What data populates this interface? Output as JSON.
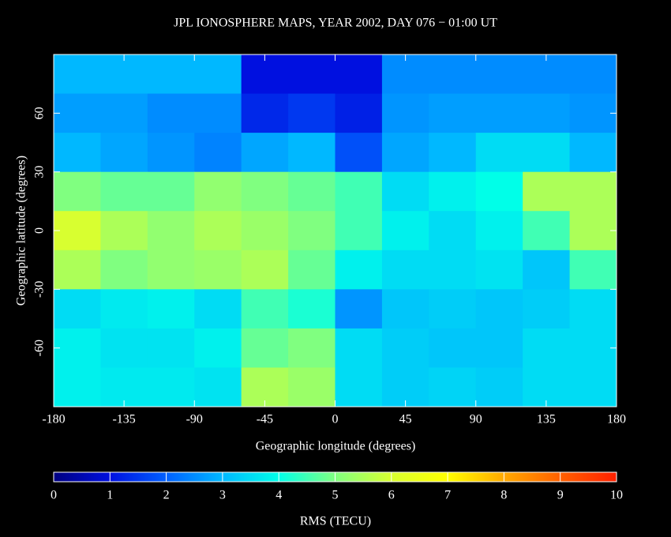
{
  "map": {
    "type": "heatmap",
    "title": "JPL IONOSPHERE MAPS, YEAR 2002, DAY 076 − 01:00 UT",
    "x_label": "Geographic longitude (degrees)",
    "y_label": "Geographic latitude (degrees)",
    "xlim": [
      -180,
      180
    ],
    "ylim": [
      -90,
      90
    ],
    "xticks": [
      -180,
      -135,
      -90,
      -45,
      0,
      45,
      90,
      135,
      180
    ],
    "yticks": [
      -60,
      -30,
      0,
      30,
      60
    ],
    "lon_edges": [
      -180,
      -150,
      -120,
      -90,
      -60,
      -30,
      0,
      30,
      60,
      90,
      120,
      150,
      180
    ],
    "lat_edges": [
      90,
      70,
      50,
      30,
      10,
      -10,
      -30,
      -50,
      -70,
      -90
    ],
    "values": [
      [
        3,
        3,
        3,
        3,
        1,
        1,
        1,
        2.5,
        2.5,
        2.5,
        2.5,
        2.5
      ],
      [
        2.7,
        2.7,
        2.5,
        2.5,
        1.3,
        1.5,
        1.2,
        2.6,
        2.7,
        2.7,
        2.7,
        2.6
      ],
      [
        3,
        2.8,
        2.6,
        2.4,
        2.8,
        3,
        1.8,
        2.8,
        3,
        3.5,
        3.5,
        3
      ],
      [
        5,
        4.8,
        4.8,
        5.2,
        5,
        4.8,
        4.5,
        3.5,
        3.8,
        4,
        5.5,
        5.5
      ],
      [
        6,
        5.5,
        5.2,
        5.5,
        5.3,
        5,
        4.5,
        3.8,
        3.5,
        3.8,
        4.5,
        5.5
      ],
      [
        5.5,
        5,
        5.2,
        5.3,
        5.5,
        4.8,
        3.8,
        3.5,
        3.5,
        3.6,
        3.2,
        4.5
      ],
      [
        3.5,
        3.7,
        3.8,
        3.5,
        4.5,
        4.2,
        2.6,
        3.2,
        3.3,
        3.2,
        3.3,
        3.5
      ],
      [
        3.8,
        3.6,
        3.6,
        3.8,
        4.8,
        5,
        3.5,
        3.3,
        3.2,
        3.2,
        3.5,
        3.5
      ],
      [
        3.8,
        3.7,
        3.7,
        3.6,
        5.5,
        5.3,
        3.5,
        3.3,
        3.4,
        3.3,
        3.5,
        3.5
      ]
    ],
    "colorbar": {
      "label": "RMS (TECU)",
      "lim": [
        0,
        10
      ],
      "ticks": [
        0,
        1,
        2,
        3,
        4,
        5,
        6,
        7,
        8,
        9,
        10
      ],
      "colors": [
        "#000080",
        "#0010e0",
        "#0060ff",
        "#00b8ff",
        "#00ffe8",
        "#80ff80",
        "#d8ff30",
        "#ffff00",
        "#ffa800",
        "#ff6000",
        "#ff2000"
      ]
    }
  }
}
